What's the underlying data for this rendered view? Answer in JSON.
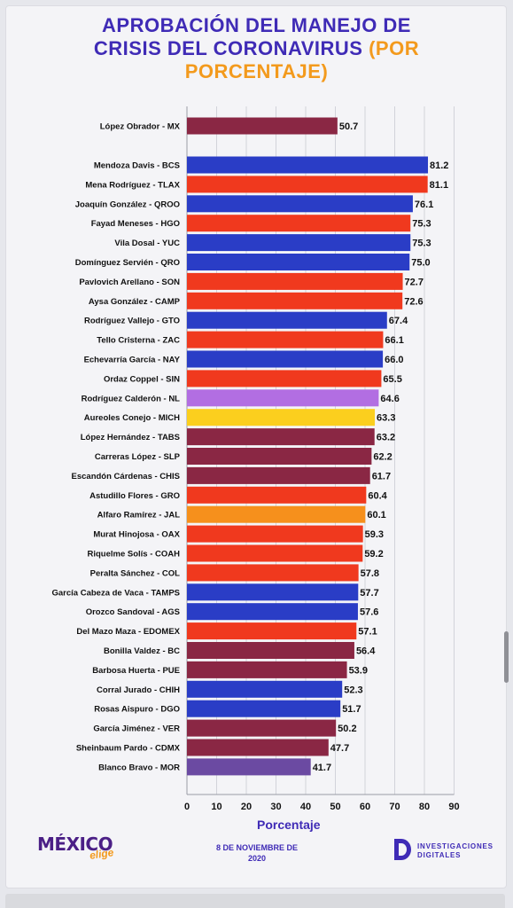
{
  "title": {
    "line1": "APROBACIÓN DEL MANEJO DE",
    "line2": "CRISIS DEL CORONAVIRUS",
    "line2_accent": "(POR",
    "line3_accent": "PORCENTAJE)"
  },
  "footer": {
    "logo_main": "MÉXICO",
    "logo_sub": "elige",
    "date_line1": "8 DE NOVIEMBRE DE",
    "date_line2": "2020",
    "brand_line1": "INVESTIGACIONES",
    "brand_line2": "DIGITALES"
  },
  "colors": {
    "title": "#3f2bb6",
    "accent": "#f39a1d",
    "blue": "#2a3dc6",
    "red": "#f0391e",
    "maroon": "#8a2744",
    "purple": "#b26ee2",
    "yellow": "#fbcf1e",
    "orange": "#f6901c",
    "violet": "#6b4aa2"
  },
  "chart_data": {
    "type": "bar",
    "orientation": "horizontal",
    "xlabel": "Porcentaje",
    "xlim": [
      0,
      90
    ],
    "xticks": [
      0,
      10,
      20,
      30,
      40,
      50,
      60,
      70,
      80,
      90
    ],
    "grid": true,
    "categories": [
      "López Obrador - MX",
      "Mendoza Davis - BCS",
      "Mena Rodríguez - TLAX",
      "Joaquín González - QROO",
      "Fayad Meneses - HGO",
      "Vila Dosal - YUC",
      "Domínguez Servién - QRO",
      "Pavlovich Arellano - SON",
      "Aysa González - CAMP",
      "Rodríguez Vallejo - GTO",
      "Tello Cristerna - ZAC",
      "Echevarría García - NAY",
      "Ordaz Coppel - SIN",
      "Rodríguez Calderón - NL",
      "Aureoles Conejo - MICH",
      "López Hernández - TABS",
      "Carreras López - SLP",
      "Escandón Cárdenas - CHIS",
      "Astudillo Flores - GRO",
      "Alfaro Ramírez - JAL",
      "Murat Hinojosa - OAX",
      "Riquelme Solís - COAH",
      "Peralta Sánchez - COL",
      "García Cabeza de Vaca - TAMPS",
      "Orozco Sandoval - AGS",
      "Del Mazo Maza - EDOMEX",
      "Bonilla Valdez - BC",
      "Barbosa Huerta - PUE",
      "Corral Jurado - CHIH",
      "Rosas Aispuro - DGO",
      "García Jiménez - VER",
      "Sheinbaum Pardo - CDMX",
      "Blanco Bravo - MOR"
    ],
    "values": [
      50.7,
      81.2,
      81.1,
      76.1,
      75.3,
      75.3,
      75.0,
      72.7,
      72.6,
      67.4,
      66.1,
      66.0,
      65.5,
      64.6,
      63.3,
      63.2,
      62.2,
      61.7,
      60.4,
      60.1,
      59.3,
      59.2,
      57.8,
      57.7,
      57.6,
      57.1,
      56.4,
      53.9,
      52.3,
      51.7,
      50.2,
      47.7,
      41.7
    ],
    "value_labels": [
      "50.7",
      "81.2",
      "81.1",
      "76.1",
      "75.3",
      "75.3",
      "75.0",
      "72.7",
      "72.6",
      "67.4",
      "66.1",
      "66.0",
      "65.5",
      "64.6",
      "63.3",
      "63.2",
      "62.2",
      "61.7",
      "60.4",
      "60.1",
      "59.3",
      "59.2",
      "57.8",
      "57.7",
      "57.6",
      "57.1",
      "56.4",
      "53.9",
      "52.3",
      "51.7",
      "50.2",
      "47.7",
      "41.7"
    ],
    "bar_colors": [
      "maroon",
      "blue",
      "red",
      "blue",
      "red",
      "blue",
      "blue",
      "red",
      "red",
      "blue",
      "red",
      "blue",
      "red",
      "purple",
      "yellow",
      "maroon",
      "maroon",
      "maroon",
      "red",
      "orange",
      "red",
      "red",
      "red",
      "blue",
      "blue",
      "red",
      "maroon",
      "maroon",
      "blue",
      "blue",
      "maroon",
      "maroon",
      "violet"
    ]
  }
}
